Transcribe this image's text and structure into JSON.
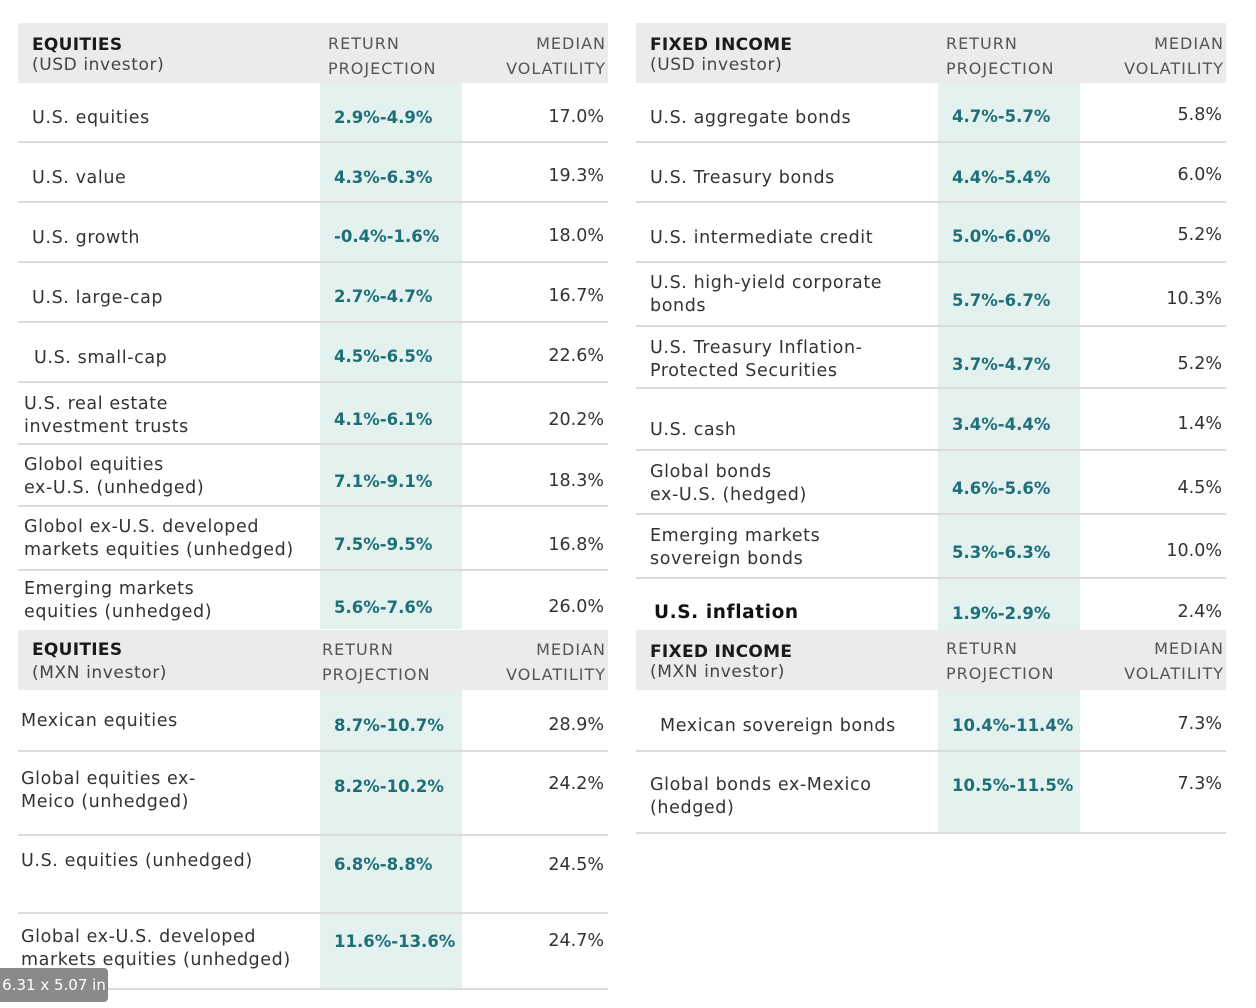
{
  "tables": {
    "eq_usd": {
      "title": "EQUITIES",
      "subtitle": "(USD investor)",
      "col_return_1": "RETURN",
      "col_return_2": "PROJECTION",
      "col_vol_1": "MEDIAN",
      "col_vol_2": "VOLATILITY",
      "rows": [
        {
          "label": "U.S. equities",
          "projection": "2.9%-4.9%",
          "volatility": "17.0%"
        },
        {
          "label": "U.S. value",
          "projection": "4.3%-6.3%",
          "volatility": "19.3%"
        },
        {
          "label": "U.S. growth",
          "projection": "-0.4%-1.6%",
          "volatility": "18.0%"
        },
        {
          "label": "U.S. large-cap",
          "projection": "2.7%-4.7%",
          "volatility": "16.7%"
        },
        {
          "label": "U.S. small-cap",
          "projection": "4.5%-6.5%",
          "volatility": "22.6%"
        },
        {
          "label": "U.S. real estate",
          "label2": "investment trusts",
          "projection": "4.1%-6.1%",
          "volatility": "20.2%"
        },
        {
          "label": "Globol equities",
          "label2": "ex-U.S. (unhedged)",
          "projection": "7.1%-9.1%",
          "volatility": "18.3%"
        },
        {
          "label": "Globol ex-U.S. developed",
          "label2": "markets equities (unhedged)",
          "projection": "7.5%-9.5%",
          "volatility": "16.8%"
        },
        {
          "label": "Emerging markets",
          "label2": "equities (unhedged)",
          "projection": "5.6%-7.6%",
          "volatility": "26.0%"
        }
      ]
    },
    "fi_usd": {
      "title": "FIXED INCOME",
      "subtitle": "(USD investor)",
      "col_return_1": "RETURN",
      "col_return_2": "PROJECTION",
      "col_vol_1": "MEDIAN",
      "col_vol_2": "VOLATILITY",
      "rows": [
        {
          "label": "U.S. aggregate bonds",
          "projection": "4.7%-5.7%",
          "volatility": "5.8%"
        },
        {
          "label": "U.S. Treasury bonds",
          "projection": "4.4%-5.4%",
          "volatility": "6.0%"
        },
        {
          "label": "U.S. intermediate credit",
          "projection": "5.0%-6.0%",
          "volatility": "5.2%"
        },
        {
          "label": "U.S. high-yield corporate",
          "label2": "bonds",
          "projection": "5.7%-6.7%",
          "volatility": "10.3%"
        },
        {
          "label": "U.S. Treasury Inflation-",
          "label2": "Protected Securities",
          "projection": "3.7%-4.7%",
          "volatility": "5.2%"
        },
        {
          "label": "U.S. cash",
          "projection": "3.4%-4.4%",
          "volatility": "1.4%"
        },
        {
          "label": "Global bonds",
          "label2": "ex-U.S. (hedged)",
          "projection": "4.6%-5.6%",
          "volatility": "4.5%"
        },
        {
          "label": "Emerging markets",
          "label2": "sovereign bonds",
          "projection": "5.3%-6.3%",
          "volatility": "10.0%"
        },
        {
          "label": "U.S. inflation",
          "projection": "1.9%-2.9%",
          "volatility": "2.4%",
          "bold": true
        }
      ]
    },
    "eq_mxn": {
      "title": "EQUITIES",
      "subtitle": "(MXN investor)",
      "col_return_1": "RETURN",
      "col_return_2": "PROJECTION",
      "col_vol_1": "MEDIAN",
      "col_vol_2": "VOLATILITY",
      "rows": [
        {
          "label": "Mexican equities",
          "projection": "8.7%-10.7%",
          "volatility": "28.9%"
        },
        {
          "label": "Global equities ex-",
          "label2": "Meico (unhedged)",
          "projection": "8.2%-10.2%",
          "volatility": "24.2%"
        },
        {
          "label": "U.S. equities (unhedged)",
          "projection": "6.8%-8.8%",
          "volatility": "24.5%"
        },
        {
          "label": "Global ex-U.S. developed",
          "label2": "markets equities (unhedged)",
          "projection": "11.6%-13.6%",
          "volatility": "24.7%"
        }
      ]
    },
    "fi_mxn": {
      "title": "FIXED INCOME",
      "subtitle": "(MXN investor)",
      "col_return_1": "RETURN",
      "col_return_2": "PROJECTION",
      "col_vol_1": "MEDIAN",
      "col_vol_2": "VOLATILITY",
      "rows": [
        {
          "label": "Mexican sovereign bonds",
          "projection": "10.4%-11.4%",
          "volatility": "7.3%"
        },
        {
          "label": "Global bonds ex-Mexico",
          "label2": "(hedged)",
          "projection": "10.5%-11.5%",
          "volatility": "7.3%"
        }
      ]
    }
  },
  "size_badge": "6.31 x 5.07 in"
}
